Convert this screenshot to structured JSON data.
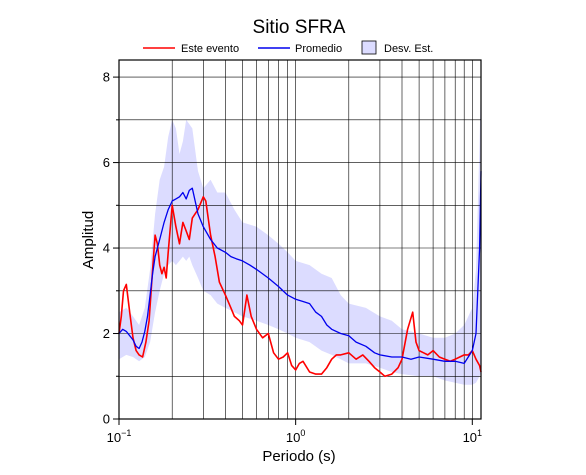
{
  "chart_data": {
    "type": "line",
    "title": "Sitio SFRA",
    "xlabel": "Periodo (s)",
    "ylabel": "Amplitud",
    "xscale": "log",
    "xlim": [
      0.1,
      11.2
    ],
    "ylim": [
      0,
      8.4
    ],
    "grid": true,
    "legend_position": "top",
    "x_ticks": [
      {
        "value": 0.1,
        "base": "10",
        "exp": "−1"
      },
      {
        "value": 1,
        "base": "10",
        "exp": "0"
      },
      {
        "value": 10,
        "base": "10",
        "exp": "1"
      }
    ],
    "y_ticks": [
      0,
      2,
      4,
      6,
      8
    ],
    "legend": {
      "este_evento": "Este evento",
      "promedio": "Promedio",
      "desv_est": "Desv. Est."
    },
    "colors": {
      "este_evento": "#ff0000",
      "promedio": "#0000ee",
      "band_fill": "#dcdcff"
    },
    "series": [
      {
        "name": "Este evento",
        "x": [
          0.1,
          0.103,
          0.106,
          0.11,
          0.115,
          0.12,
          0.125,
          0.13,
          0.136,
          0.142,
          0.148,
          0.155,
          0.16,
          0.165,
          0.17,
          0.175,
          0.18,
          0.185,
          0.19,
          0.2,
          0.21,
          0.22,
          0.23,
          0.24,
          0.25,
          0.26,
          0.28,
          0.3,
          0.31,
          0.33,
          0.35,
          0.37,
          0.4,
          0.43,
          0.45,
          0.48,
          0.5,
          0.53,
          0.56,
          0.6,
          0.65,
          0.7,
          0.75,
          0.8,
          0.85,
          0.9,
          0.95,
          1.0,
          1.05,
          1.1,
          1.2,
          1.3,
          1.4,
          1.5,
          1.6,
          1.7,
          1.8,
          2.0,
          2.2,
          2.4,
          2.6,
          2.8,
          3.0,
          3.2,
          3.5,
          3.8,
          4.0,
          4.3,
          4.6,
          4.8,
          5.0,
          5.3,
          5.6,
          6.0,
          6.5,
          7.0,
          7.5,
          8.0,
          8.5,
          9.0,
          9.5,
          10.0,
          10.5,
          11.0,
          11.2
        ],
        "y": [
          2.0,
          2.4,
          3.0,
          3.15,
          2.5,
          1.9,
          1.6,
          1.5,
          1.45,
          1.8,
          2.3,
          3.5,
          4.3,
          4.1,
          3.6,
          3.4,
          3.55,
          3.3,
          3.9,
          5.0,
          4.5,
          4.1,
          4.6,
          4.4,
          4.2,
          4.7,
          4.9,
          5.2,
          5.1,
          4.3,
          3.8,
          3.2,
          2.9,
          2.6,
          2.4,
          2.3,
          2.2,
          2.9,
          2.4,
          2.1,
          1.9,
          2.0,
          1.55,
          1.4,
          1.45,
          1.55,
          1.25,
          1.15,
          1.3,
          1.35,
          1.1,
          1.05,
          1.05,
          1.2,
          1.4,
          1.5,
          1.5,
          1.55,
          1.4,
          1.5,
          1.35,
          1.2,
          1.1,
          1.0,
          1.05,
          1.2,
          1.4,
          2.1,
          2.5,
          1.8,
          1.6,
          1.55,
          1.5,
          1.6,
          1.45,
          1.4,
          1.35,
          1.4,
          1.45,
          1.5,
          1.5,
          1.6,
          1.4,
          1.25,
          1.1
        ]
      },
      {
        "name": "Promedio",
        "x": [
          0.1,
          0.105,
          0.11,
          0.115,
          0.12,
          0.125,
          0.13,
          0.135,
          0.14,
          0.145,
          0.15,
          0.155,
          0.16,
          0.17,
          0.18,
          0.19,
          0.2,
          0.21,
          0.22,
          0.23,
          0.24,
          0.25,
          0.26,
          0.28,
          0.3,
          0.33,
          0.36,
          0.4,
          0.43,
          0.46,
          0.5,
          0.55,
          0.6,
          0.7,
          0.8,
          0.9,
          1.0,
          1.1,
          1.2,
          1.3,
          1.4,
          1.5,
          1.6,
          1.8,
          2.0,
          2.2,
          2.5,
          2.8,
          3.0,
          3.5,
          4.0,
          4.5,
          5.0,
          6.0,
          7.0,
          8.0,
          9.0,
          10.0,
          10.5,
          11.0,
          11.2
        ],
        "y": [
          2.0,
          2.1,
          2.05,
          1.95,
          1.85,
          1.7,
          1.65,
          1.8,
          2.05,
          2.4,
          2.9,
          3.4,
          3.8,
          4.2,
          4.6,
          4.9,
          5.1,
          5.15,
          5.2,
          5.3,
          5.15,
          5.35,
          5.4,
          4.8,
          4.5,
          4.2,
          4.0,
          3.9,
          3.8,
          3.75,
          3.7,
          3.6,
          3.5,
          3.3,
          3.1,
          2.9,
          2.8,
          2.75,
          2.7,
          2.5,
          2.4,
          2.2,
          2.1,
          2.0,
          1.95,
          1.8,
          1.7,
          1.55,
          1.5,
          1.45,
          1.45,
          1.4,
          1.45,
          1.4,
          1.35,
          1.35,
          1.3,
          1.6,
          2.0,
          4.0,
          5.8
        ]
      },
      {
        "name": "Desv. Est.",
        "x": [
          0.1,
          0.11,
          0.12,
          0.13,
          0.14,
          0.15,
          0.16,
          0.17,
          0.18,
          0.19,
          0.2,
          0.21,
          0.22,
          0.23,
          0.24,
          0.25,
          0.26,
          0.28,
          0.3,
          0.33,
          0.36,
          0.4,
          0.45,
          0.5,
          0.6,
          0.7,
          0.8,
          0.9,
          1.0,
          1.2,
          1.4,
          1.6,
          1.8,
          2.0,
          2.5,
          3.0,
          3.5,
          4.0,
          5.0,
          6.0,
          7.0,
          8.0,
          9.0,
          10.0,
          10.5,
          11.0,
          11.2
        ],
        "upper": [
          2.5,
          2.6,
          2.4,
          2.2,
          2.6,
          3.5,
          4.8,
          5.6,
          5.9,
          6.6,
          7.0,
          6.8,
          6.2,
          6.5,
          7.0,
          6.9,
          6.8,
          5.8,
          5.4,
          5.6,
          5.3,
          5.3,
          4.9,
          4.6,
          4.5,
          4.3,
          4.1,
          3.9,
          3.7,
          3.6,
          3.4,
          3.3,
          2.9,
          2.7,
          2.6,
          2.4,
          2.3,
          2.1,
          2.0,
          1.9,
          1.9,
          2.0,
          2.2,
          2.6,
          3.5,
          6.5,
          8.0
        ],
        "lower": [
          1.4,
          1.5,
          1.45,
          1.35,
          1.45,
          1.8,
          2.5,
          3.0,
          3.4,
          3.6,
          3.7,
          3.6,
          3.7,
          3.8,
          3.7,
          3.8,
          3.6,
          3.3,
          3.0,
          2.9,
          2.7,
          2.6,
          2.5,
          2.4,
          2.3,
          2.2,
          2.1,
          2.0,
          1.9,
          1.8,
          1.6,
          1.5,
          1.4,
          1.3,
          1.3,
          1.2,
          1.1,
          1.05,
          1.0,
          1.0,
          0.9,
          0.85,
          0.8,
          0.8,
          0.85,
          1.0,
          1.1
        ]
      }
    ]
  }
}
